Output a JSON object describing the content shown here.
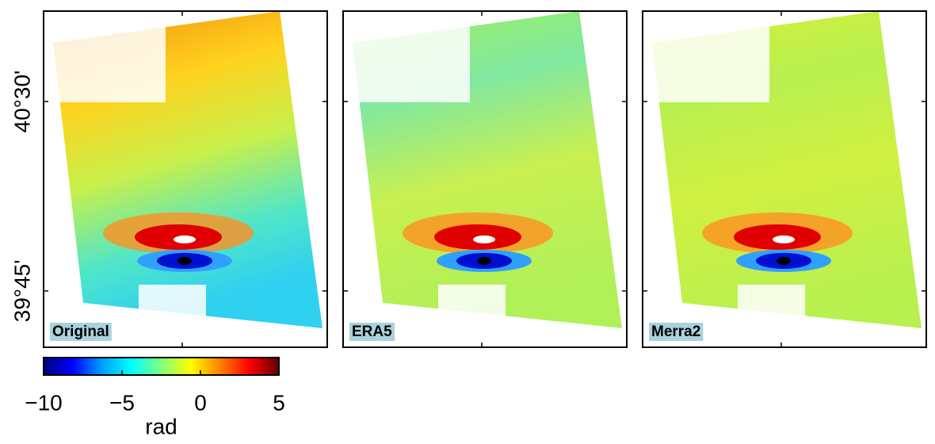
{
  "panels": [
    {
      "label": "Original"
    },
    {
      "label": "ERA5"
    },
    {
      "label": "Merra2"
    }
  ],
  "latitude_axis": {
    "lim": [
      39.527,
      40.858
    ],
    "ticks": [
      {
        "value": 40.5,
        "label": "40°30'"
      },
      {
        "value": 39.75,
        "label": "39°45'"
      }
    ]
  },
  "colorbar": {
    "label": "rad",
    "lim": [
      -10,
      5
    ],
    "ticks": [
      {
        "value": -10,
        "label": "−10"
      },
      {
        "value": -5,
        "label": "−5"
      },
      0,
      5
    ],
    "colormap": [
      "#000080",
      "#0000ff",
      "#00a0ff",
      "#00ffff",
      "#80ff80",
      "#ffff00",
      "#ff8000",
      "#ff0000",
      "#600000"
    ]
  }
}
